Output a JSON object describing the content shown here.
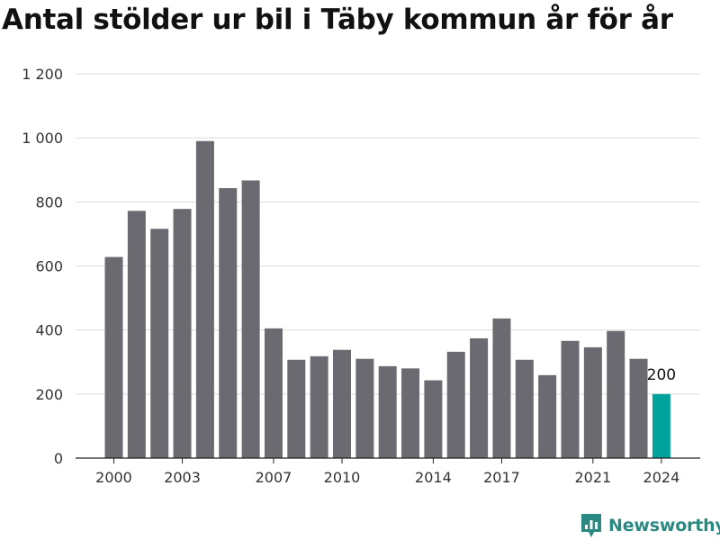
{
  "chart_data": {
    "type": "bar",
    "title": "Antal stölder ur bil i Täby kommun år för år",
    "xlabel": "",
    "ylabel": "",
    "ylim": [
      0,
      1200
    ],
    "y_ticks": [
      0,
      200,
      400,
      600,
      800,
      1000,
      1200
    ],
    "y_tick_labels": [
      "0",
      "200",
      "400",
      "600",
      "800",
      "1 000",
      "1 200"
    ],
    "categories": [
      "2000",
      "2001",
      "2002",
      "2003",
      "2004",
      "2005",
      "2006",
      "2007",
      "2008",
      "2009",
      "2010",
      "2011",
      "2012",
      "2013",
      "2014",
      "2015",
      "2016",
      "2017",
      "2018",
      "2019",
      "2020",
      "2021",
      "2022",
      "2023",
      "2024"
    ],
    "x_tick_labels": [
      "2000",
      "2003",
      "2007",
      "2010",
      "2014",
      "2017",
      "2021",
      "2024"
    ],
    "values": [
      628,
      772,
      716,
      778,
      990,
      843,
      867,
      405,
      307,
      318,
      338,
      310,
      287,
      280,
      243,
      332,
      374,
      436,
      307,
      259,
      366,
      346,
      397,
      310,
      200
    ],
    "bar_color": "#6b6a70",
    "highlight_color": "#00a39b",
    "highlight_index": 24,
    "annotations": [
      {
        "category": "2024",
        "text": "200"
      }
    ],
    "grid": true,
    "legend": "none"
  },
  "brand": {
    "name": "Newsworthy",
    "color": "#2a8a82",
    "icon": "newsworthy-logo-icon"
  }
}
